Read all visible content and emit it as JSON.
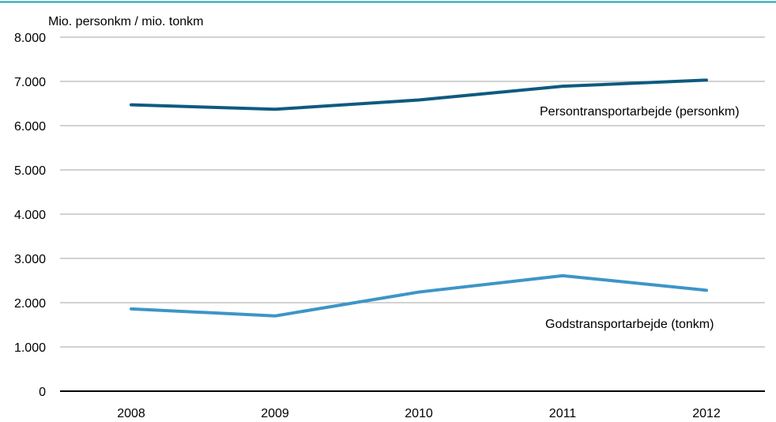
{
  "chart_data": {
    "type": "line",
    "title": "",
    "ylabel": "Mio. personkm / mio. tonkm",
    "xlabel": "",
    "categories": [
      "2008",
      "2009",
      "2010",
      "2011",
      "2012"
    ],
    "ylim": [
      0,
      8000
    ],
    "yticks": [
      0,
      1000,
      2000,
      3000,
      4000,
      5000,
      6000,
      7000,
      8000
    ],
    "ytick_labels": [
      "0",
      "1.000",
      "2.000",
      "3.000",
      "4.000",
      "5.000",
      "6.000",
      "7.000",
      "8.000"
    ],
    "grid": true,
    "series": [
      {
        "name": "Persontransportarbejde (personkm)",
        "values": [
          6470,
          6370,
          6580,
          6890,
          7030
        ],
        "color": "#0e5a80"
      },
      {
        "name": "Godstransportarbejde (tonkm)",
        "values": [
          1860,
          1700,
          2240,
          2610,
          2280
        ],
        "color": "#3d95c8"
      }
    ],
    "top_rule_color": "#1fa0b8",
    "grid_color": "#a6a6a6",
    "baseline_color": "#000000"
  }
}
